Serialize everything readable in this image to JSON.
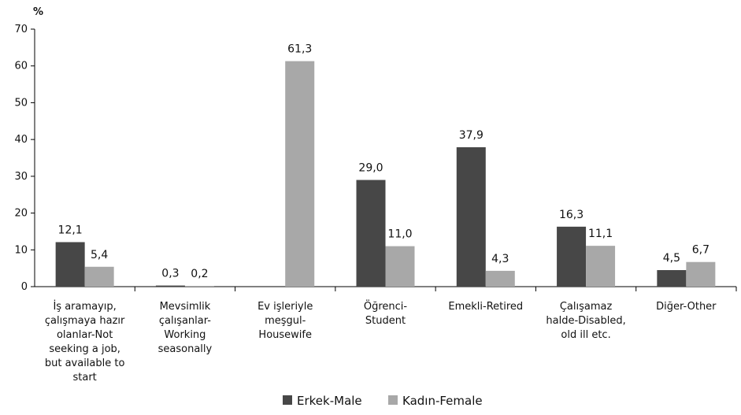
{
  "chart_data": {
    "type": "bar",
    "ylabel": "%",
    "ylim": [
      0,
      70
    ],
    "yticks": [
      "0",
      "10",
      "20",
      "30",
      "40",
      "50",
      "60",
      "70"
    ],
    "grid": false,
    "legend_position": "bottom",
    "categories": [
      [
        "İş aramayıp,",
        "çalışmaya hazır",
        "olanlar-Not",
        "seeking a job,",
        "but available to",
        "start"
      ],
      [
        "Mevsimlik",
        "çalışanlar-",
        "Working",
        "seasonally"
      ],
      [
        "Ev işleriyle",
        "meşgul-",
        "Housewife"
      ],
      [
        "Öğrenci-",
        "Student"
      ],
      [
        "Emekli-Retired"
      ],
      [
        "Çalışamaz",
        "halde-Disabled,",
        "old ill etc."
      ],
      [
        "Diğer-Other"
      ]
    ],
    "series": [
      {
        "name": "Erkek-Male",
        "color": "#474747",
        "values": [
          12.1,
          0.3,
          null,
          29.0,
          37.9,
          16.3,
          4.5
        ],
        "labels": [
          "12,1",
          "0,3",
          "",
          "29,0",
          "37,9",
          "16,3",
          "4,5"
        ]
      },
      {
        "name": "Kadın-Female",
        "color": "#a8a8a8",
        "values": [
          5.4,
          0.2,
          61.3,
          11.0,
          4.3,
          11.1,
          6.7
        ],
        "labels": [
          "5,4",
          "0,2",
          "61,3",
          "11,0",
          "4,3",
          "11,1",
          "6,7"
        ]
      }
    ]
  }
}
